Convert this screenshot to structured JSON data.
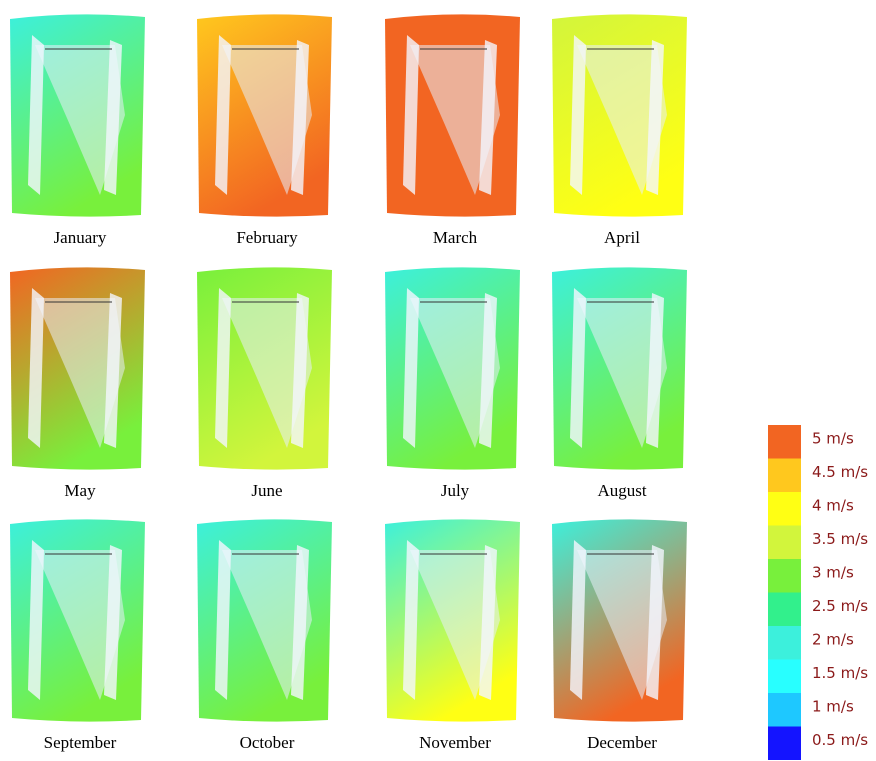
{
  "panels": [
    {
      "label": "January",
      "colors": [
        "#3cf0dc",
        "#78f03c"
      ]
    },
    {
      "label": "February",
      "colors": [
        "#ffc81e",
        "#f26522"
      ]
    },
    {
      "label": "March",
      "colors": [
        "#f26522",
        "#f26522"
      ]
    },
    {
      "label": "April",
      "colors": [
        "#d2f53c",
        "#ffff14"
      ]
    },
    {
      "label": "May",
      "colors": [
        "#f26522",
        "#78f03c"
      ]
    },
    {
      "label": "June",
      "colors": [
        "#78f03c",
        "#d2f53c"
      ]
    },
    {
      "label": "July",
      "colors": [
        "#3cf0dc",
        "#78f03c"
      ]
    },
    {
      "label": "August",
      "colors": [
        "#3cf0dc",
        "#78f03c"
      ]
    },
    {
      "label": "September",
      "colors": [
        "#3cf0dc",
        "#78f03c"
      ]
    },
    {
      "label": "October",
      "colors": [
        "#3cf0dc",
        "#78f03c"
      ]
    },
    {
      "label": "November",
      "colors": [
        "#3cf0dc",
        "#ffff14"
      ]
    },
    {
      "label": "December",
      "colors": [
        "#3cf0dc",
        "#f26522"
      ]
    }
  ],
  "legend": [
    {
      "label": "5 m/s",
      "color": "#f26522"
    },
    {
      "label": "4.5 m/s",
      "color": "#ffc81e"
    },
    {
      "label": "4 m/s",
      "color": "#ffff14"
    },
    {
      "label": "3.5 m/s",
      "color": "#d2f53c"
    },
    {
      "label": "3 m/s",
      "color": "#78f03c"
    },
    {
      "label": "2.5 m/s",
      "color": "#32f08c"
    },
    {
      "label": "2 m/s",
      "color": "#3cf0dc"
    },
    {
      "label": "1.5 m/s",
      "color": "#28ffff"
    },
    {
      "label": "1 m/s",
      "color": "#1ec8ff"
    },
    {
      "label": "0.5 m/s",
      "color": "#1414ff"
    }
  ]
}
